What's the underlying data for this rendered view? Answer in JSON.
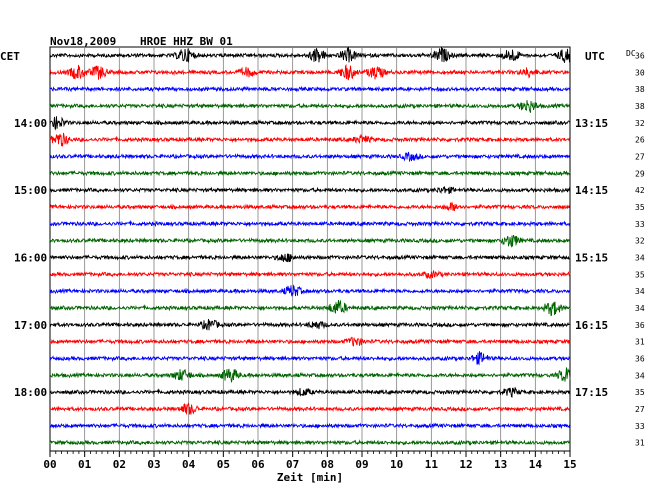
{
  "header": {
    "date": "Nov18,2009",
    "station": "HROE HHZ BW 01",
    "left_zone": "CET",
    "right_zone": "UTC",
    "dc_label": "DC"
  },
  "colors": {
    "black": "#000000",
    "red": "#ff0000",
    "blue": "#0000ff",
    "green": "#006400",
    "grid": "#808080"
  },
  "chart_data": {
    "type": "line",
    "title": "Nov18,2009   HROE HHZ BW 01",
    "xlabel": "Zeit [min]",
    "xlim": [
      0,
      15
    ],
    "x_ticks": [
      "00",
      "01",
      "02",
      "03",
      "04",
      "05",
      "06",
      "07",
      "08",
      "09",
      "10",
      "11",
      "12",
      "13",
      "14",
      "15"
    ],
    "rows_per_hour": 4,
    "color_cycle": [
      "black",
      "red",
      "blue",
      "green"
    ],
    "left_hour_labels": [
      {
        "row": 4,
        "text": "14:00"
      },
      {
        "row": 8,
        "text": "15:00"
      },
      {
        "row": 12,
        "text": "16:00"
      },
      {
        "row": 16,
        "text": "17:00"
      },
      {
        "row": 20,
        "text": "18:00"
      }
    ],
    "right_hour_labels": [
      {
        "row": 4,
        "text": "13:15"
      },
      {
        "row": 8,
        "text": "14:15"
      },
      {
        "row": 12,
        "text": "15:15"
      },
      {
        "row": 16,
        "text": "16:15"
      },
      {
        "row": 20,
        "text": "17:15"
      }
    ],
    "dc_offsets": [
      "36",
      "30",
      "38",
      "38",
      "32",
      "26",
      "27",
      "29",
      "42",
      "35",
      "33",
      "32",
      "34",
      "35",
      "34",
      "34",
      "36",
      "31",
      "36",
      "34",
      "35",
      "27",
      "33",
      "31"
    ],
    "bursts": [
      {
        "row": 0,
        "minute": 3.9,
        "amp": 1.0
      },
      {
        "row": 0,
        "minute": 7.7,
        "amp": 1.0
      },
      {
        "row": 0,
        "minute": 8.6,
        "amp": 0.9
      },
      {
        "row": 0,
        "minute": 11.3,
        "amp": 1.0
      },
      {
        "row": 0,
        "minute": 13.3,
        "amp": 0.9
      },
      {
        "row": 0,
        "minute": 14.9,
        "amp": 1.0
      },
      {
        "row": 1,
        "minute": 0.8,
        "amp": 1.0
      },
      {
        "row": 1,
        "minute": 1.4,
        "amp": 0.9
      },
      {
        "row": 1,
        "minute": 5.7,
        "amp": 0.6
      },
      {
        "row": 1,
        "minute": 8.6,
        "amp": 1.0
      },
      {
        "row": 1,
        "minute": 9.4,
        "amp": 0.9
      },
      {
        "row": 1,
        "minute": 13.8,
        "amp": 0.6
      },
      {
        "row": 3,
        "minute": 13.8,
        "amp": 0.9
      },
      {
        "row": 4,
        "minute": 0.2,
        "amp": 0.8
      },
      {
        "row": 5,
        "minute": 0.3,
        "amp": 1.0
      },
      {
        "row": 5,
        "minute": 9.0,
        "amp": 0.5
      },
      {
        "row": 6,
        "minute": 10.4,
        "amp": 0.5
      },
      {
        "row": 8,
        "minute": 11.4,
        "amp": 0.4
      },
      {
        "row": 9,
        "minute": 11.6,
        "amp": 0.5
      },
      {
        "row": 11,
        "minute": 13.3,
        "amp": 0.9
      },
      {
        "row": 12,
        "minute": 6.8,
        "amp": 0.6
      },
      {
        "row": 13,
        "minute": 11.0,
        "amp": 0.4
      },
      {
        "row": 14,
        "minute": 7.0,
        "amp": 0.8
      },
      {
        "row": 15,
        "minute": 8.3,
        "amp": 1.0
      },
      {
        "row": 15,
        "minute": 14.5,
        "amp": 1.0
      },
      {
        "row": 16,
        "minute": 4.6,
        "amp": 0.7
      },
      {
        "row": 16,
        "minute": 7.7,
        "amp": 0.5
      },
      {
        "row": 17,
        "minute": 8.8,
        "amp": 0.6
      },
      {
        "row": 18,
        "minute": 12.4,
        "amp": 0.8
      },
      {
        "row": 19,
        "minute": 5.2,
        "amp": 1.0
      },
      {
        "row": 19,
        "minute": 3.8,
        "amp": 0.8
      },
      {
        "row": 19,
        "minute": 14.9,
        "amp": 1.0
      },
      {
        "row": 20,
        "minute": 7.3,
        "amp": 0.5
      },
      {
        "row": 20,
        "minute": 13.3,
        "amp": 0.5
      },
      {
        "row": 21,
        "minute": 4.0,
        "amp": 0.8
      }
    ]
  }
}
